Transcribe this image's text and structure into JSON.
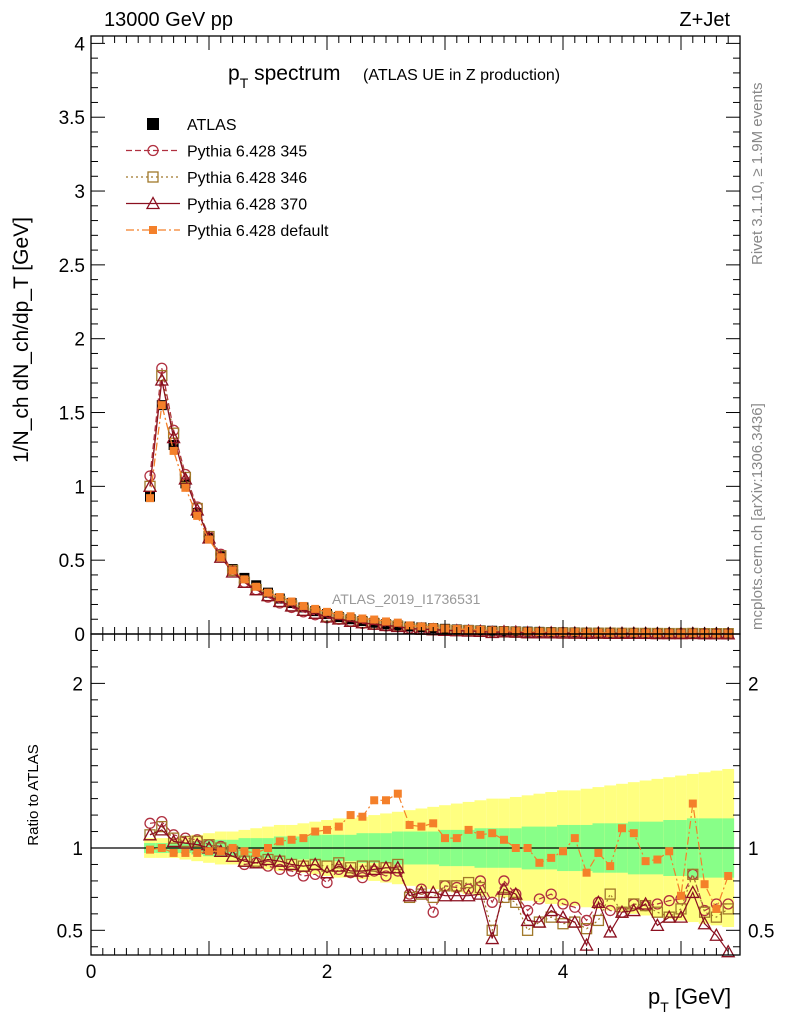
{
  "header": {
    "energy_label": "13000 GeV pp",
    "process_label": "Z+Jet"
  },
  "side_labels": {
    "rivet": "Rivet 3.1.10, ≥ 1.9M events",
    "mcplots": "mcplots.cern.ch [arXiv:1306.3436]"
  },
  "colors": {
    "data": "#000000",
    "p345": "#b03040",
    "p346": "#a0782a",
    "p370": "#8b1020",
    "pdefault": "#f4802a",
    "band_inner": "#88ff88",
    "band_outer": "#ffff80"
  },
  "chart_data": [
    {
      "type": "scatter",
      "panel": "main",
      "title": "p_T spectrum",
      "title_main": "p",
      "title_sub": "T",
      "title_rest": " spectrum",
      "title_note": "(ATLAS UE in Z production)",
      "xlabel": "p_T [GeV]",
      "xlabel_main": "p",
      "xlabel_sub": "T",
      "xlabel_rest": " [GeV]",
      "ylabel": "1/N_ch dN_ch/dp_T [GeV]",
      "xlim": [
        0,
        5.5
      ],
      "ylim": [
        0,
        4.05
      ],
      "yticks": [
        "0",
        "0.5",
        "1",
        "1.5",
        "2",
        "2.5",
        "3",
        "3.5",
        "4"
      ],
      "xticks": [
        "0",
        "2",
        "4"
      ],
      "watermark": "ATLAS_2019_I1736531",
      "legend_position": "top-left",
      "x": [
        0.5,
        0.6,
        0.7,
        0.8,
        0.9,
        1.0,
        1.1,
        1.2,
        1.3,
        1.4,
        1.5,
        1.6,
        1.7,
        1.8,
        1.9,
        2.0,
        2.1,
        2.2,
        2.3,
        2.4,
        2.5,
        2.6,
        2.7,
        2.8,
        2.9,
        3.0,
        3.1,
        3.2,
        3.3,
        3.4,
        3.5,
        3.6,
        3.7,
        3.8,
        3.9,
        4.0,
        4.1,
        4.2,
        4.3,
        4.4,
        4.5,
        4.6,
        4.7,
        4.8,
        4.9,
        5.0,
        5.1,
        5.2,
        5.3,
        5.4
      ],
      "series": [
        {
          "name": "ATLAS",
          "key": "data",
          "marker": "square-filled",
          "line": "none",
          "values": [
            0.93,
            1.55,
            1.28,
            1.02,
            0.82,
            0.65,
            0.53,
            0.44,
            0.38,
            0.33,
            0.28,
            0.24,
            0.21,
            0.18,
            0.155,
            0.135,
            0.115,
            0.1,
            0.088,
            0.076,
            0.066,
            0.058,
            0.051,
            0.045,
            0.04,
            0.035,
            0.031,
            0.028,
            0.025,
            0.022,
            0.02,
            0.018,
            0.016,
            0.0145,
            0.013,
            0.012,
            0.011,
            0.0098,
            0.0089,
            0.0081,
            0.0074,
            0.0068,
            0.0062,
            0.0057,
            0.0052,
            0.0048,
            0.0044,
            0.0041,
            0.0038,
            0.0035
          ]
        },
        {
          "name": "Pythia 6.428 345",
          "key": "p345",
          "marker": "circle-open",
          "line": "dashed",
          "values": [
            1.07,
            1.8,
            1.38,
            1.08,
            0.86,
            0.66,
            0.54,
            0.43,
            0.35,
            0.3,
            0.25,
            0.21,
            0.18,
            0.15,
            0.13,
            0.11,
            0.1,
            0.085,
            0.072,
            0.065,
            0.055,
            0.05,
            0.04,
            0.035,
            0.03,
            0.027,
            0.024,
            0.021,
            0.02,
            0.015,
            0.016,
            0.013,
            0.01,
            0.01,
            0.009,
            0.008,
            0.007,
            0.0055,
            0.006,
            0.005,
            0.0045,
            0.0045,
            0.004,
            0.0038,
            0.0035,
            0.0033,
            0.0037,
            0.0025,
            0.0025,
            0.0023
          ]
        },
        {
          "name": "Pythia 6.428 346",
          "key": "p346",
          "marker": "square-open",
          "line": "dotted",
          "values": [
            1.0,
            1.75,
            1.36,
            1.06,
            0.85,
            0.66,
            0.53,
            0.43,
            0.35,
            0.3,
            0.26,
            0.22,
            0.19,
            0.16,
            0.14,
            0.12,
            0.105,
            0.088,
            0.078,
            0.068,
            0.058,
            0.052,
            0.036,
            0.032,
            0.028,
            0.027,
            0.024,
            0.022,
            0.019,
            0.011,
            0.014,
            0.012,
            0.008,
            0.008,
            0.0075,
            0.0065,
            0.006,
            0.005,
            0.005,
            0.0058,
            0.0045,
            0.0045,
            0.004,
            0.0035,
            0.003,
            0.003,
            0.0037,
            0.0025,
            0.0022,
            0.0022
          ]
        },
        {
          "name": "Pythia 6.428 370",
          "key": "p370",
          "marker": "triangle-open",
          "line": "solid",
          "values": [
            1.0,
            1.72,
            1.33,
            1.05,
            0.84,
            0.65,
            0.52,
            0.42,
            0.35,
            0.3,
            0.26,
            0.22,
            0.19,
            0.16,
            0.14,
            0.115,
            0.102,
            0.086,
            0.076,
            0.066,
            0.058,
            0.051,
            0.036,
            0.033,
            0.029,
            0.025,
            0.022,
            0.02,
            0.018,
            0.01,
            0.015,
            0.013,
            0.009,
            0.008,
            0.008,
            0.007,
            0.006,
            0.004,
            0.006,
            0.004,
            0.0045,
            0.0042,
            0.0041,
            0.003,
            0.003,
            0.0028,
            0.0032,
            0.0022,
            0.0018,
            0.0013
          ]
        },
        {
          "name": "Pythia 6.428 default",
          "key": "pdefault",
          "marker": "square-filled-small",
          "line": "dashdot",
          "values": [
            0.92,
            1.55,
            1.24,
            0.99,
            0.8,
            0.64,
            0.52,
            0.43,
            0.37,
            0.32,
            0.28,
            0.25,
            0.22,
            0.19,
            0.17,
            0.15,
            0.13,
            0.12,
            0.105,
            0.098,
            0.085,
            0.077,
            0.058,
            0.051,
            0.046,
            0.037,
            0.033,
            0.031,
            0.027,
            0.024,
            0.021,
            0.018,
            0.016,
            0.0132,
            0.0122,
            0.0118,
            0.0117,
            0.0083,
            0.0086,
            0.0072,
            0.0083,
            0.0074,
            0.0057,
            0.0053,
            0.0051,
            0.0034,
            0.0056,
            0.0032,
            0.0024,
            0.0029
          ]
        }
      ]
    },
    {
      "type": "scatter",
      "panel": "ratio",
      "ylabel": "Ratio to ATLAS",
      "xlim": [
        0,
        5.5
      ],
      "ylim": [
        0.35,
        2.3
      ],
      "yticks": [
        "0.5",
        "1",
        "2"
      ],
      "x": [
        0.5,
        0.6,
        0.7,
        0.8,
        0.9,
        1.0,
        1.1,
        1.2,
        1.3,
        1.4,
        1.5,
        1.6,
        1.7,
        1.8,
        1.9,
        2.0,
        2.1,
        2.2,
        2.3,
        2.4,
        2.5,
        2.6,
        2.7,
        2.8,
        2.9,
        3.0,
        3.1,
        3.2,
        3.3,
        3.4,
        3.5,
        3.6,
        3.7,
        3.8,
        3.9,
        4.0,
        4.1,
        4.2,
        4.3,
        4.4,
        4.5,
        4.6,
        4.7,
        4.8,
        4.9,
        5.0,
        5.1,
        5.2,
        5.3,
        5.4
      ],
      "band_inner_halfwidth": [
        0.03,
        0.03,
        0.03,
        0.03,
        0.04,
        0.05,
        0.05,
        0.05,
        0.06,
        0.06,
        0.06,
        0.07,
        0.07,
        0.07,
        0.08,
        0.08,
        0.08,
        0.08,
        0.09,
        0.09,
        0.09,
        0.1,
        0.1,
        0.1,
        0.1,
        0.11,
        0.11,
        0.11,
        0.12,
        0.12,
        0.12,
        0.12,
        0.13,
        0.13,
        0.13,
        0.14,
        0.14,
        0.14,
        0.15,
        0.15,
        0.15,
        0.16,
        0.16,
        0.16,
        0.17,
        0.17,
        0.18,
        0.18,
        0.18,
        0.18
      ],
      "band_outer_halfwidth": [
        0.06,
        0.06,
        0.06,
        0.07,
        0.08,
        0.09,
        0.1,
        0.1,
        0.11,
        0.12,
        0.13,
        0.14,
        0.14,
        0.15,
        0.16,
        0.17,
        0.18,
        0.18,
        0.19,
        0.2,
        0.21,
        0.22,
        0.23,
        0.24,
        0.25,
        0.26,
        0.27,
        0.28,
        0.29,
        0.3,
        0.3,
        0.31,
        0.32,
        0.33,
        0.34,
        0.35,
        0.35,
        0.36,
        0.37,
        0.38,
        0.39,
        0.4,
        0.41,
        0.42,
        0.43,
        0.44,
        0.45,
        0.46,
        0.47,
        0.48
      ],
      "series": [
        {
          "name": "Pythia 6.428 345",
          "key": "p345",
          "values": [
            1.15,
            1.16,
            1.08,
            1.06,
            1.05,
            1.02,
            1.01,
            0.98,
            0.9,
            0.91,
            0.89,
            0.87,
            0.86,
            0.83,
            0.84,
            0.79,
            0.87,
            0.85,
            0.82,
            0.86,
            0.83,
            0.86,
            0.72,
            0.75,
            0.61,
            0.77,
            0.76,
            0.75,
            0.8,
            0.67,
            0.8,
            0.72,
            0.62,
            0.69,
            0.72,
            0.66,
            0.64,
            0.56,
            0.67,
            0.62,
            0.61,
            0.66,
            0.65,
            0.66,
            0.68,
            0.69,
            0.84,
            0.62,
            0.66,
            0.66
          ]
        },
        {
          "name": "Pythia 6.428 346",
          "key": "p346",
          "values": [
            1.08,
            1.13,
            1.06,
            1.04,
            1.04,
            1.02,
            1.0,
            0.98,
            0.92,
            0.92,
            0.93,
            0.92,
            0.9,
            0.89,
            0.9,
            0.89,
            0.91,
            0.88,
            0.89,
            0.89,
            0.88,
            0.9,
            0.7,
            0.72,
            0.7,
            0.77,
            0.77,
            0.79,
            0.76,
            0.5,
            0.7,
            0.67,
            0.5,
            0.55,
            0.58,
            0.54,
            0.55,
            0.51,
            0.56,
            0.72,
            0.61,
            0.66,
            0.65,
            0.61,
            0.58,
            0.63,
            0.84,
            0.61,
            0.58,
            0.63
          ]
        },
        {
          "name": "Pythia 6.428 370",
          "key": "p370",
          "values": [
            1.08,
            1.11,
            1.04,
            1.03,
            1.02,
            1.0,
            0.98,
            0.95,
            0.92,
            0.91,
            0.93,
            0.92,
            0.9,
            0.89,
            0.9,
            0.85,
            0.89,
            0.86,
            0.86,
            0.87,
            0.88,
            0.88,
            0.71,
            0.73,
            0.73,
            0.71,
            0.71,
            0.71,
            0.72,
            0.45,
            0.75,
            0.72,
            0.56,
            0.55,
            0.62,
            0.58,
            0.55,
            0.41,
            0.67,
            0.49,
            0.61,
            0.62,
            0.66,
            0.53,
            0.58,
            0.58,
            0.73,
            0.54,
            0.47,
            0.37
          ]
        },
        {
          "name": "Pythia 6.428 default",
          "key": "pdefault",
          "values": [
            0.99,
            1.0,
            0.97,
            0.97,
            0.97,
            0.98,
            0.98,
            1.0,
            0.98,
            0.97,
            1.0,
            1.04,
            1.05,
            1.06,
            1.1,
            1.11,
            1.13,
            1.2,
            1.19,
            1.29,
            1.29,
            1.33,
            1.14,
            1.13,
            1.15,
            1.06,
            1.06,
            1.11,
            1.08,
            1.09,
            1.05,
            1.0,
            1.0,
            0.91,
            0.94,
            0.98,
            1.06,
            0.85,
            0.97,
            0.89,
            1.12,
            1.09,
            0.92,
            0.93,
            0.98,
            0.71,
            1.27,
            0.78,
            0.63,
            0.83
          ]
        }
      ]
    }
  ]
}
